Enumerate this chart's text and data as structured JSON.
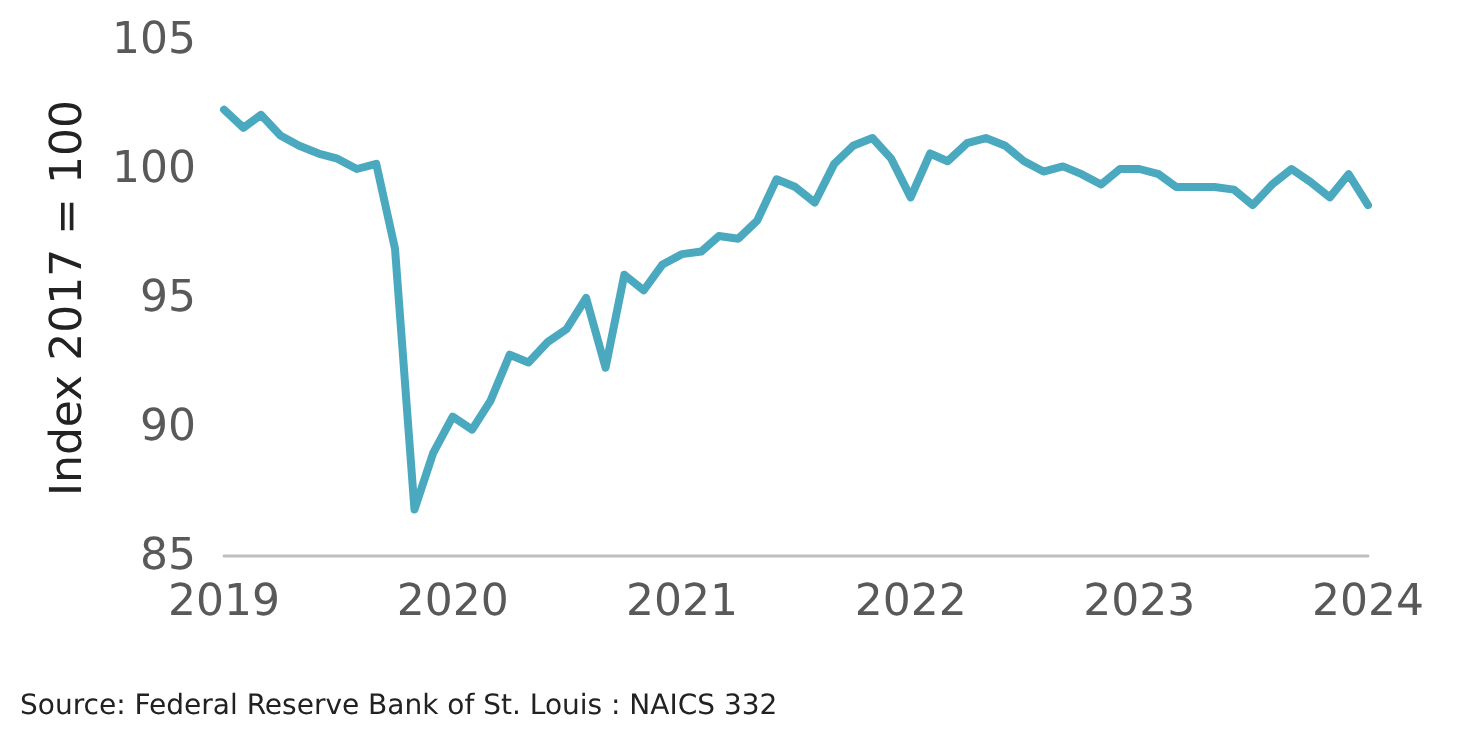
{
  "chart_data": {
    "type": "line",
    "ylabel": "Index 2017 = 100",
    "annotations": [
      "Source: Federal Reserve Bank of St. Louis : NAICS 332"
    ],
    "x": [
      "2019-01",
      "2019-02",
      "2019-03",
      "2019-04",
      "2019-05",
      "2019-06",
      "2019-07",
      "2019-08",
      "2019-09",
      "2019-10",
      "2019-11",
      "2019-12",
      "2020-01",
      "2020-02",
      "2020-03",
      "2020-04",
      "2020-05",
      "2020-06",
      "2020-07",
      "2020-08",
      "2020-09",
      "2020-10",
      "2020-11",
      "2020-12",
      "2021-01",
      "2021-02",
      "2021-03",
      "2021-04",
      "2021-05",
      "2021-06",
      "2021-07",
      "2021-08",
      "2021-09",
      "2021-10",
      "2021-11",
      "2021-12",
      "2022-01",
      "2022-02",
      "2022-03",
      "2022-04",
      "2022-05",
      "2022-06",
      "2022-07",
      "2022-08",
      "2022-09",
      "2022-10",
      "2022-11",
      "2022-12",
      "2023-01",
      "2023-02",
      "2023-03",
      "2023-04",
      "2023-05",
      "2023-06",
      "2023-07",
      "2023-08",
      "2023-09",
      "2023-10",
      "2023-11",
      "2023-12",
      "2024-01"
    ],
    "series": [
      {
        "color": "#4aa9bf",
        "values": [
          102.3,
          101.6,
          102.1,
          101.3,
          100.9,
          100.6,
          100.4,
          100.0,
          100.2,
          96.9,
          86.8,
          89.0,
          90.4,
          89.9,
          91.0,
          92.8,
          92.5,
          93.3,
          93.8,
          95.0,
          92.3,
          95.9,
          95.3,
          96.3,
          96.7,
          96.8,
          97.4,
          97.3,
          98.0,
          99.6,
          99.3,
          98.7,
          100.2,
          100.9,
          101.2,
          100.4,
          98.9,
          100.6,
          100.3,
          101.0,
          101.2,
          100.9,
          100.3,
          99.9,
          100.1,
          99.8,
          99.4,
          100.0,
          100.0,
          99.8,
          99.3,
          99.3,
          99.3,
          99.2,
          98.6,
          99.4,
          100.0,
          99.5,
          98.9,
          99.8,
          98.6
        ]
      }
    ],
    "xlim": [
      "2019",
      "2024"
    ],
    "xticks": [
      "2019",
      "2020",
      "2021",
      "2022",
      "2023",
      "2024"
    ],
    "ylim": [
      85,
      105
    ],
    "yticks": [
      85,
      90,
      95,
      100,
      105
    ],
    "grid": false,
    "marker": "none",
    "line_style": "solid"
  }
}
